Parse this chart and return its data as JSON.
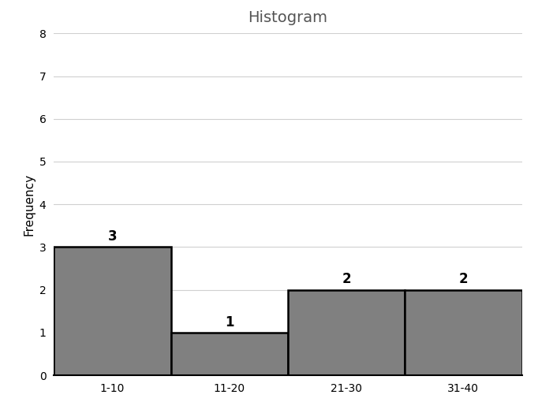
{
  "title": "Histogram",
  "ylabel": "Frequency",
  "categories": [
    "1-10",
    "11-20",
    "21-30",
    "31-40"
  ],
  "frequencies": [
    3,
    1,
    2,
    2
  ],
  "bar_color": "#808080",
  "bar_edgecolor": "#000000",
  "bar_linewidth": 1.8,
  "ylim": [
    0,
    8
  ],
  "yticks": [
    0,
    1,
    2,
    3,
    4,
    5,
    6,
    7,
    8
  ],
  "title_fontsize": 14,
  "title_color": "#555555",
  "ylabel_fontsize": 11,
  "tick_fontsize": 10,
  "label_fontsize": 12,
  "label_fontweight": "bold",
  "background_color": "#ffffff",
  "grid_color": "#d0d0d0",
  "grid_linewidth": 0.8,
  "bar_width": 1.0
}
